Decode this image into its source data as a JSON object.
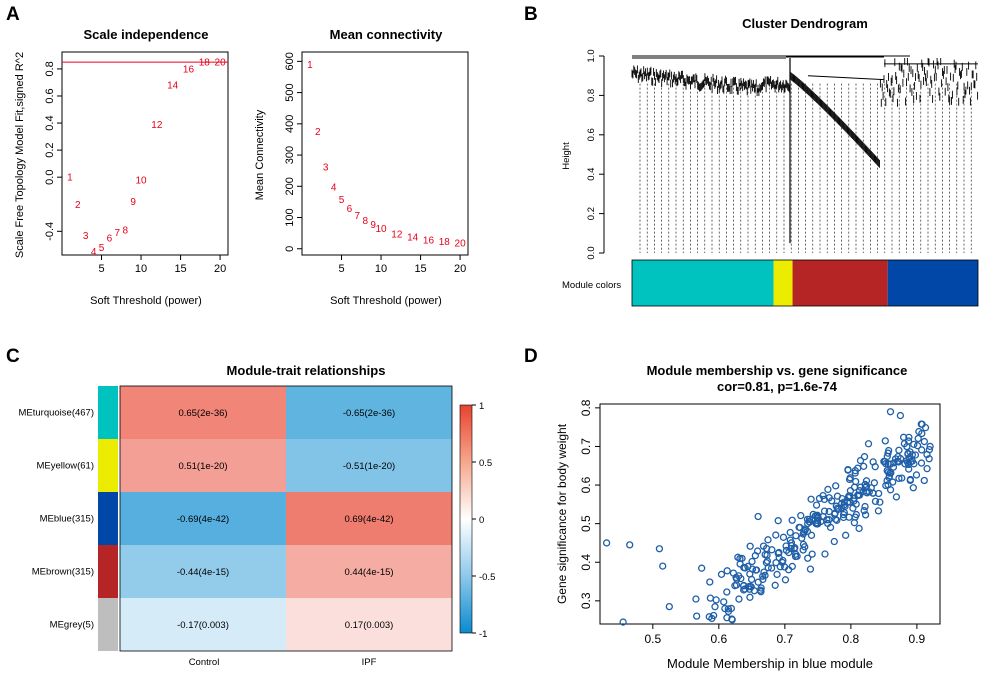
{
  "panels": {
    "A": {
      "label": "A",
      "scale": {
        "title": "Scale independence",
        "xlabel": "Soft Threshold (power)",
        "ylabel": "Scale Free Topology Model Fit,signed R^2",
        "xticks": [
          "5",
          "10",
          "15",
          "20"
        ],
        "yticks": [
          "-0.4",
          "0.0",
          "0.2",
          "0.4",
          "0.6",
          "0.8"
        ],
        "threshold": 0.85,
        "points": [
          {
            "label": "1",
            "x": 1,
            "y": 0.0
          },
          {
            "label": "2",
            "x": 2,
            "y": -0.2
          },
          {
            "label": "3",
            "x": 3,
            "y": -0.43
          },
          {
            "label": "4",
            "x": 4,
            "y": -0.55
          },
          {
            "label": "5",
            "x": 5,
            "y": -0.52
          },
          {
            "label": "6",
            "x": 6,
            "y": -0.45
          },
          {
            "label": "7",
            "x": 7,
            "y": -0.41
          },
          {
            "label": "8",
            "x": 8,
            "y": -0.39
          },
          {
            "label": "9",
            "x": 9,
            "y": -0.18
          },
          {
            "label": "10",
            "x": 10,
            "y": -0.02
          },
          {
            "label": "12",
            "x": 12,
            "y": 0.39
          },
          {
            "label": "14",
            "x": 14,
            "y": 0.68
          },
          {
            "label": "16",
            "x": 16,
            "y": 0.8
          },
          {
            "label": "18",
            "x": 18,
            "y": 0.85
          },
          {
            "label": "20",
            "x": 20,
            "y": 0.85
          }
        ]
      },
      "conn": {
        "title": "Mean connectivity",
        "xlabel": "Soft Threshold (power)",
        "ylabel": "Mean Connectivity",
        "xticks": [
          "5",
          "10",
          "15",
          "20"
        ],
        "yticks": [
          "0",
          "100",
          "200",
          "300",
          "400",
          "500",
          "600"
        ],
        "points": [
          {
            "label": "1",
            "x": 1,
            "y": 590
          },
          {
            "label": "2",
            "x": 2,
            "y": 375
          },
          {
            "label": "3",
            "x": 3,
            "y": 262
          },
          {
            "label": "4",
            "x": 4,
            "y": 197
          },
          {
            "label": "5",
            "x": 5,
            "y": 158
          },
          {
            "label": "6",
            "x": 6,
            "y": 129
          },
          {
            "label": "7",
            "x": 7,
            "y": 107
          },
          {
            "label": "8",
            "x": 8,
            "y": 91
          },
          {
            "label": "9",
            "x": 9,
            "y": 77
          },
          {
            "label": "10",
            "x": 10,
            "y": 65
          },
          {
            "label": "12",
            "x": 12,
            "y": 48
          },
          {
            "label": "14",
            "x": 14,
            "y": 37
          },
          {
            "label": "16",
            "x": 16,
            "y": 28
          },
          {
            "label": "18",
            "x": 18,
            "y": 23
          },
          {
            "label": "20",
            "x": 20,
            "y": 18
          }
        ]
      }
    },
    "B": {
      "label": "B",
      "title": "Cluster Dendrogram",
      "ylabel": "Height",
      "yticks": [
        "0.0",
        "0.2",
        "0.4",
        "0.6",
        "0.8",
        "1.0"
      ],
      "module_label": "Module colors",
      "modules": [
        {
          "name": "turquoise",
          "color": "#00c3c0",
          "frac": 0.409
        },
        {
          "name": "yellow",
          "color": "#ecec00",
          "frac": 0.055
        },
        {
          "name": "brown",
          "color": "#b52525",
          "frac": 0.275
        },
        {
          "name": "blue",
          "color": "#0047a8",
          "frac": 0.261
        }
      ]
    },
    "C": {
      "label": "C",
      "title": "Module-trait relationships",
      "columns": [
        "Control",
        "IPF"
      ],
      "legend_ticks": [
        "1",
        "0.5",
        "0",
        "-0.5",
        "-1"
      ],
      "rows": [
        {
          "name": "MEturquoise(467)",
          "color": "#00c3c0",
          "values": [
            "0.65(2e-36)",
            "-0.65(2e-36)"
          ],
          "corr": [
            0.65,
            -0.65
          ]
        },
        {
          "name": "MEyellow(61)",
          "color": "#ecec00",
          "values": [
            "0.51(1e-20)",
            "-0.51(1e-20)"
          ],
          "corr": [
            0.51,
            -0.51
          ]
        },
        {
          "name": "MEblue(315)",
          "color": "#0047a8",
          "values": [
            "-0.69(4e-42)",
            "0.69(4e-42)"
          ],
          "corr": [
            -0.69,
            0.69
          ]
        },
        {
          "name": "MEbrown(315)",
          "color": "#b52525",
          "values": [
            "-0.44(4e-15)",
            "0.44(4e-15)"
          ],
          "corr": [
            -0.44,
            0.44
          ]
        },
        {
          "name": "MEgrey(5)",
          "color": "#bebebe",
          "values": [
            "-0.17(0.003)",
            "0.17(0.003)"
          ],
          "corr": [
            -0.17,
            0.17
          ]
        }
      ]
    },
    "D": {
      "label": "D",
      "title": "Module membership vs. gene significance",
      "subtitle": "cor=0.81, p=1.6e-74",
      "xlabel": "Module Membership in blue module",
      "ylabel": "Gene significance for body weight",
      "xticks": [
        "0.5",
        "0.6",
        "0.7",
        "0.8",
        "0.9"
      ],
      "yticks": [
        "0.3",
        "0.4",
        "0.5",
        "0.6",
        "0.7",
        "0.8"
      ],
      "point_color": "#1f5fa8"
    }
  },
  "chart_data": [
    {
      "type": "scatter",
      "title": "Scale independence",
      "xlabel": "Soft Threshold (power)",
      "ylabel": "Scale Free Topology Model Fit,signed R^2",
      "xlim": [
        1,
        20
      ],
      "ylim": [
        -0.55,
        0.88
      ],
      "x": [
        1,
        2,
        3,
        4,
        5,
        6,
        7,
        8,
        9,
        10,
        12,
        14,
        16,
        18,
        20
      ],
      "y": [
        0.0,
        -0.2,
        -0.43,
        -0.55,
        -0.52,
        -0.45,
        -0.41,
        -0.39,
        -0.18,
        -0.02,
        0.39,
        0.68,
        0.8,
        0.85,
        0.85
      ],
      "hline": 0.85
    },
    {
      "type": "scatter",
      "title": "Mean connectivity",
      "xlabel": "Soft Threshold (power)",
      "ylabel": "Mean Connectivity",
      "xlim": [
        1,
        20
      ],
      "ylim": [
        0,
        620
      ],
      "x": [
        1,
        2,
        3,
        4,
        5,
        6,
        7,
        8,
        9,
        10,
        12,
        14,
        16,
        18,
        20
      ],
      "y": [
        590,
        375,
        262,
        197,
        158,
        129,
        107,
        91,
        77,
        65,
        48,
        37,
        28,
        23,
        18
      ]
    },
    {
      "type": "heatmap",
      "title": "Module-trait relationships",
      "columns": [
        "Control",
        "IPF"
      ],
      "rows": [
        "MEturquoise(467)",
        "MEyellow(61)",
        "MEblue(315)",
        "MEbrown(315)",
        "MEgrey(5)"
      ],
      "values": [
        [
          0.65,
          -0.65
        ],
        [
          0.51,
          -0.51
        ],
        [
          -0.69,
          0.69
        ],
        [
          -0.44,
          0.44
        ],
        [
          -0.17,
          0.17
        ]
      ],
      "pvalues": [
        [
          "2e-36",
          "2e-36"
        ],
        [
          "1e-20",
          "1e-20"
        ],
        [
          "4e-42",
          "4e-42"
        ],
        [
          "4e-15",
          "4e-15"
        ],
        [
          "0.003",
          "0.003"
        ]
      ],
      "scale": [
        -1,
        1
      ]
    },
    {
      "type": "scatter",
      "title": "Module membership vs. gene significance",
      "subtitle": "cor=0.81, p=1.6e-74",
      "xlabel": "Module Membership in blue module",
      "ylabel": "Gene significance for body weight",
      "xlim": [
        0.42,
        0.935
      ],
      "ylim": [
        0.24,
        0.81
      ],
      "summary": {
        "n_points": 315,
        "correlation": 0.81
      }
    }
  ]
}
